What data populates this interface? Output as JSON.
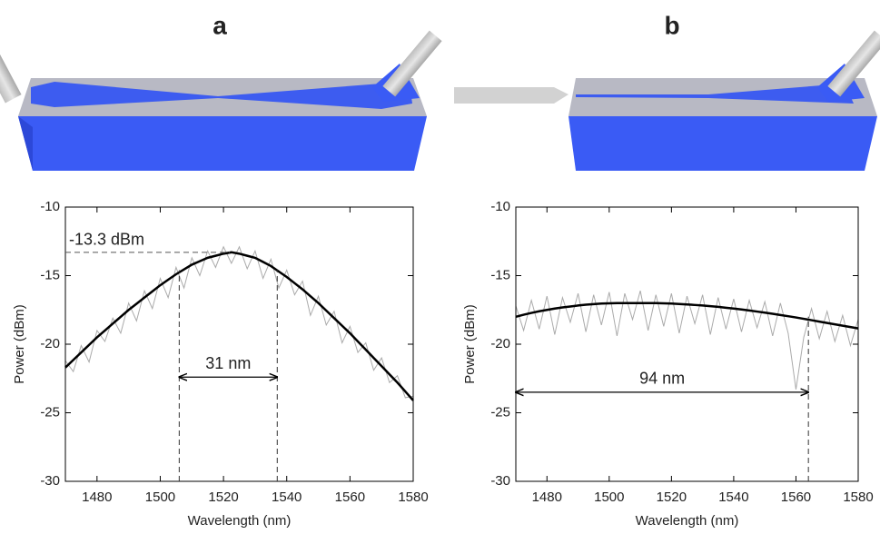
{
  "chart_data": [
    {
      "type": "line",
      "title": "a",
      "xlabel": "Wavelength (nm)",
      "ylabel": "Power (dBm)",
      "xlim": [
        1470,
        1580
      ],
      "ylim": [
        -30,
        -10
      ],
      "xticks": [
        1480,
        1500,
        1520,
        1540,
        1560,
        1580
      ],
      "yticks": [
        -30,
        -25,
        -20,
        -15,
        -10
      ],
      "x": [
        1470,
        1472.5,
        1475,
        1477.5,
        1480,
        1482.5,
        1485,
        1487.5,
        1490,
        1492.5,
        1495,
        1497.5,
        1500,
        1502.5,
        1505,
        1507.5,
        1510,
        1512.5,
        1515,
        1517.5,
        1520,
        1522.5,
        1525,
        1527.5,
        1530,
        1532.5,
        1535,
        1537.5,
        1540,
        1542.5,
        1545,
        1547.5,
        1550,
        1552.5,
        1555,
        1557.5,
        1560,
        1562.5,
        1565,
        1567.5,
        1570,
        1572.5,
        1575,
        1577.5,
        1580
      ],
      "series": [
        {
          "color": "#aaaaaa",
          "values": [
            -21.2,
            -22.0,
            -20.1,
            -21.3,
            -19.0,
            -19.8,
            -18.1,
            -19.2,
            -17.0,
            -18.3,
            -16.1,
            -17.4,
            -15.2,
            -16.6,
            -14.4,
            -15.9,
            -13.7,
            -15.0,
            -13.2,
            -14.4,
            -12.9,
            -14.1,
            -12.9,
            -14.5,
            -13.2,
            -15.2,
            -13.8,
            -15.9,
            -14.6,
            -16.4,
            -15.4,
            -17.9,
            -16.5,
            -18.6,
            -17.6,
            -19.9,
            -18.7,
            -20.6,
            -19.9,
            -21.9,
            -21.0,
            -22.8,
            -22.3,
            -23.9,
            -23.8
          ]
        },
        {
          "color": "#000000",
          "values": [
            -21.7,
            -21.15,
            -20.6,
            -20.05,
            -19.5,
            -19.0,
            -18.5,
            -18.0,
            -17.5,
            -17.05,
            -16.6,
            -16.15,
            -15.7,
            -15.3,
            -14.9,
            -14.55,
            -14.2,
            -13.95,
            -13.7,
            -13.55,
            -13.4,
            -13.3,
            -13.4,
            -13.55,
            -13.7,
            -14.0,
            -14.3,
            -14.7,
            -15.1,
            -15.55,
            -16.0,
            -16.5,
            -17.0,
            -17.55,
            -18.1,
            -18.65,
            -19.2,
            -19.8,
            -20.4,
            -21.0,
            -21.6,
            -22.2,
            -22.8,
            -23.45,
            -24.1
          ]
        }
      ],
      "hline": {
        "y": -13.3,
        "x_end": 1522,
        "label": "-13.3 dBm"
      },
      "vlines": [
        {
          "x": 1506,
          "y_top": -14.6
        },
        {
          "x": 1537,
          "y_top": -14.6
        }
      ],
      "span": {
        "x": [
          1506,
          1537
        ],
        "y": -22.4,
        "label": "31 nm"
      }
    },
    {
      "type": "line",
      "title": "b",
      "xlabel": "Wavelength (nm)",
      "ylabel": "Power (dBm)",
      "xlim": [
        1470,
        1580
      ],
      "ylim": [
        -30,
        -10
      ],
      "xticks": [
        1480,
        1500,
        1520,
        1540,
        1560,
        1580
      ],
      "yticks": [
        -30,
        -25,
        -20,
        -15,
        -10
      ],
      "x": [
        1470,
        1472.5,
        1475,
        1477.5,
        1480,
        1482.5,
        1485,
        1487.5,
        1490,
        1492.5,
        1495,
        1497.5,
        1500,
        1502.5,
        1505,
        1507.5,
        1510,
        1512.5,
        1515,
        1517.5,
        1520,
        1522.5,
        1525,
        1527.5,
        1530,
        1532.5,
        1535,
        1537.5,
        1540,
        1542.5,
        1545,
        1547.5,
        1550,
        1552.5,
        1555,
        1557.5,
        1560,
        1562.5,
        1565,
        1567.5,
        1570,
        1572.5,
        1575,
        1577.5,
        1580
      ],
      "series": [
        {
          "color": "#aaaaaa",
          "values": [
            -17.2,
            -19.0,
            -16.8,
            -18.9,
            -16.5,
            -19.3,
            -16.6,
            -18.4,
            -16.3,
            -19.1,
            -16.4,
            -18.6,
            -16.2,
            -19.4,
            -16.3,
            -18.2,
            -16.1,
            -19.0,
            -16.4,
            -18.7,
            -16.3,
            -19.2,
            -16.5,
            -18.5,
            -16.4,
            -19.3,
            -16.6,
            -18.9,
            -16.7,
            -19.1,
            -16.8,
            -18.8,
            -16.9,
            -19.4,
            -17.0,
            -19.2,
            -23.3,
            -19.5,
            -17.4,
            -19.6,
            -17.6,
            -19.8,
            -17.9,
            -20.1,
            -18.2
          ]
        },
        {
          "color": "#000000",
          "values": [
            -18.0,
            -17.85,
            -17.72,
            -17.6,
            -17.5,
            -17.4,
            -17.32,
            -17.25,
            -17.18,
            -17.12,
            -17.08,
            -17.04,
            -17.02,
            -17.0,
            -17.0,
            -17.0,
            -17.0,
            -17.0,
            -17.0,
            -17.02,
            -17.04,
            -17.07,
            -17.1,
            -17.14,
            -17.18,
            -17.23,
            -17.28,
            -17.34,
            -17.4,
            -17.47,
            -17.54,
            -17.62,
            -17.7,
            -17.78,
            -17.87,
            -17.96,
            -18.05,
            -18.15,
            -18.25,
            -18.35,
            -18.45,
            -18.55,
            -18.65,
            -18.75,
            -18.85
          ]
        }
      ],
      "vlines": [
        {
          "x": 1564,
          "y_top": -18.0
        }
      ],
      "span": {
        "x": [
          1470,
          1564
        ],
        "y": -23.5,
        "label": "94 nm"
      }
    }
  ]
}
